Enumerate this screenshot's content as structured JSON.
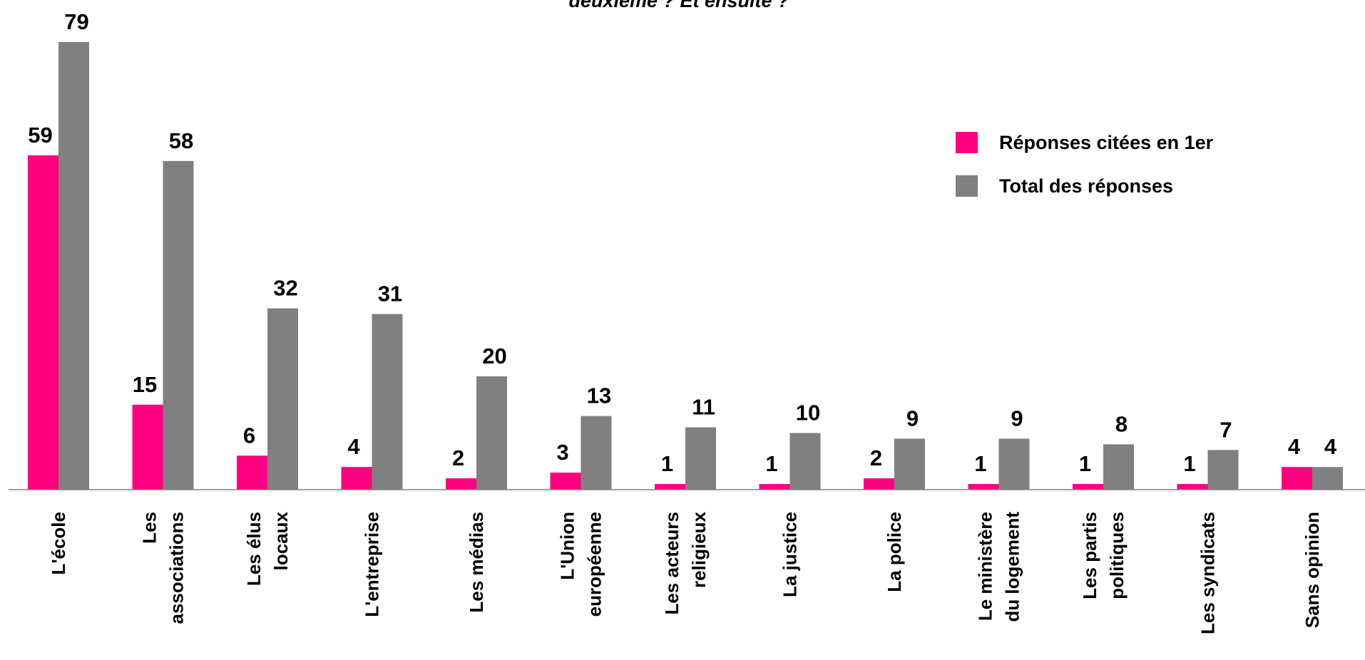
{
  "chart_data": {
    "type": "bar",
    "title": "deuxième ? Et ensuite ?",
    "categories": [
      "L'école",
      "Les\nassociations",
      "Les élus\nlocaux",
      "L'entreprise",
      "Les médias",
      "L'Union\neuropéenne",
      "Les acteurs\nreligieux",
      "La justice",
      "La police",
      "Le ministère\ndu logement",
      "Les partis\npolitiques",
      "Les syndicats",
      "Sans opinion"
    ],
    "series": [
      {
        "name": "Réponses citées en 1er",
        "color": "#ff0080",
        "values": [
          59,
          15,
          6,
          4,
          2,
          3,
          1,
          1,
          2,
          1,
          1,
          1,
          4
        ]
      },
      {
        "name": "Total des  réponses",
        "color": "#808080",
        "values": [
          79,
          58,
          32,
          31,
          20,
          13,
          11,
          10,
          9,
          9,
          8,
          7,
          4
        ]
      }
    ],
    "ylim": [
      0,
      80
    ],
    "legend": "top-right"
  }
}
